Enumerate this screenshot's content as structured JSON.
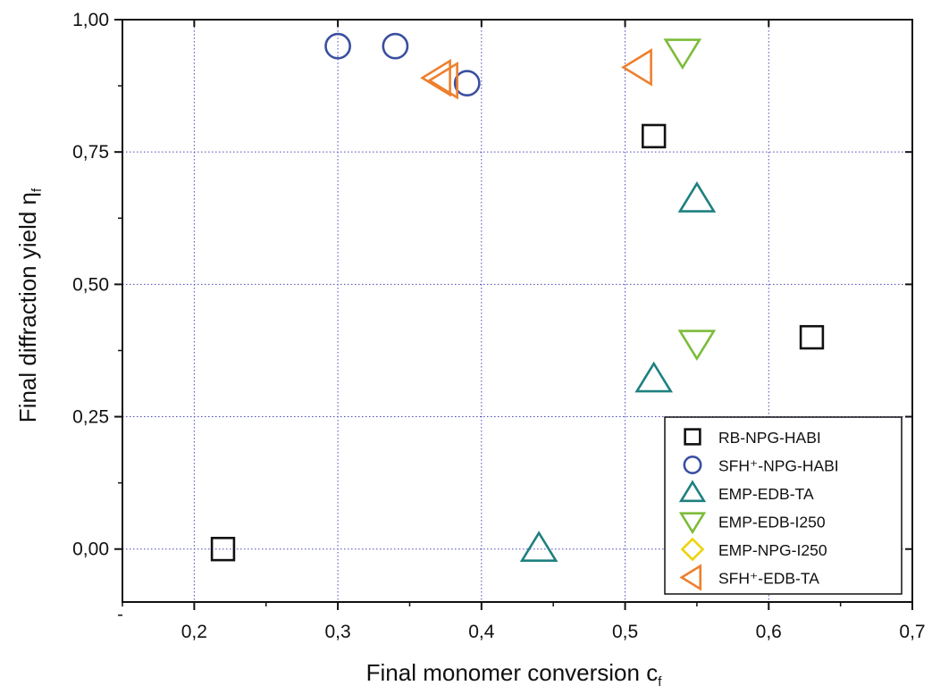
{
  "chart_data": {
    "type": "scatter",
    "xlabel": "Final monomer conversion c",
    "xlabel_sub": "f",
    "ylabel": "Final diffraction yield η",
    "ylabel_sub": "f",
    "xlim": [
      0.15,
      0.7
    ],
    "ylim": [
      -0.1,
      1.0
    ],
    "xticks": [
      0.2,
      0.3,
      0.4,
      0.5,
      0.6,
      0.7
    ],
    "xtick_labels": [
      "0,2",
      "0,3",
      "0,4",
      "0,5",
      "0,6",
      "0,7"
    ],
    "yticks": [
      0.0,
      0.25,
      0.5,
      0.75,
      1.0
    ],
    "ytick_labels": [
      "0,00",
      "0,25",
      "0,50",
      "0,75",
      "1,00"
    ],
    "grid": true,
    "legend_position": "bottom-right",
    "series": [
      {
        "name": "RB-NPG-HABI",
        "marker": "square",
        "color": "#111111",
        "points": [
          [
            0.22,
            0.0
          ],
          [
            0.52,
            0.78
          ],
          [
            0.63,
            0.4
          ]
        ]
      },
      {
        "name": "SFH⁺-NPG-HABI",
        "marker": "circle",
        "color": "#3a4fa0",
        "points": [
          [
            0.3,
            0.95
          ],
          [
            0.34,
            0.95
          ],
          [
            0.39,
            0.88
          ]
        ]
      },
      {
        "name": "EMP-EDB-TA",
        "marker": "triangle-up",
        "color": "#1f8080",
        "points": [
          [
            0.44,
            0.0
          ],
          [
            0.52,
            0.32
          ],
          [
            0.55,
            0.66
          ]
        ]
      },
      {
        "name": "EMP-EDB-I250",
        "marker": "triangle-down",
        "color": "#7cbc3a",
        "points": [
          [
            0.54,
            0.94
          ],
          [
            0.55,
            0.39
          ]
        ]
      },
      {
        "name": "EMP-NPG-I250",
        "marker": "diamond",
        "color": "#ecd40e",
        "points": []
      },
      {
        "name": "SFH⁺-EDB-TA",
        "marker": "triangle-left",
        "color": "#ee7f2d",
        "points": [
          [
            0.37,
            0.89
          ],
          [
            0.375,
            0.885
          ],
          [
            0.51,
            0.91
          ]
        ]
      }
    ]
  }
}
